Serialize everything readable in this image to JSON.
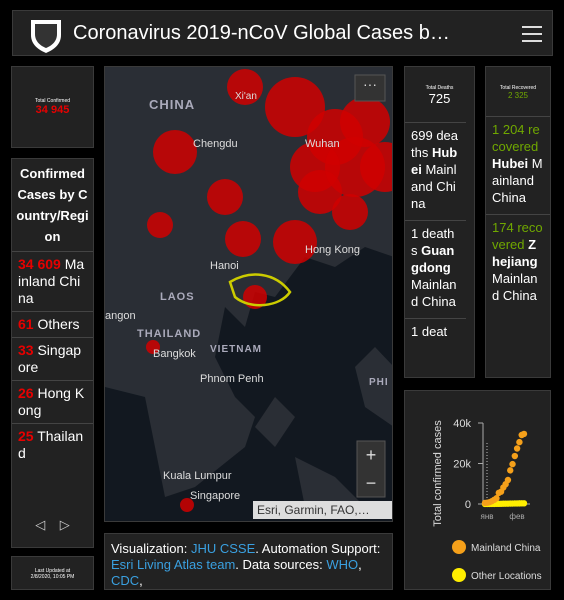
{
  "header": {
    "title": "Coronavirus 2019-nCoV Global Cases b…"
  },
  "total_confirmed": {
    "label": "Total Confirmed",
    "value": "34 945"
  },
  "confirmed_list": {
    "title": "Confirmed Cases by Country/Region",
    "items": [
      {
        "count": "34 609",
        "place": "Mainland China"
      },
      {
        "count": "61",
        "place": "Others"
      },
      {
        "count": "33",
        "place": "Singapore"
      },
      {
        "count": "26",
        "place": "Hong Kong"
      },
      {
        "count": "25",
        "place": "Thailand"
      }
    ]
  },
  "last_updated": {
    "label": "Last Updated at",
    "value": "2/8/2020, 10:05 PM"
  },
  "map": {
    "labels": [
      "CHINA",
      "Xi'an",
      "Chengdu",
      "Wuhan",
      "Hong Kong",
      "Hanoi",
      "LAOS",
      "angon",
      "THAILAND",
      "Bangkok",
      "VIETNAM",
      "Phnom Penh",
      "Kuala Lumpur",
      "Singapore",
      "PHI"
    ],
    "attribution": "Esri, Garmin, FAO,…"
  },
  "info": {
    "parts": [
      "Visualization: ",
      "JHU CSSE",
      ". Automation Support: ",
      "Esri Living Atlas team",
      ". Data sources: ",
      "WHO",
      ", ",
      "CDC",
      ","
    ]
  },
  "deaths": {
    "label": "Total Deaths",
    "value": "725",
    "items": [
      {
        "count": "699",
        "unit": "deaths",
        "place": "Hubei",
        "region": "Mainland China"
      },
      {
        "count": "1",
        "unit": "deaths",
        "place": "Guangdong",
        "region": "Mainland China"
      },
      {
        "count": "1",
        "unit": "deat",
        "place": "",
        "region": ""
      }
    ]
  },
  "recovered": {
    "label": "Total Recovered",
    "value": "2 325",
    "items": [
      {
        "count": "1 204",
        "unit": "recovered",
        "place": "Hubei",
        "region": "Mainland China"
      },
      {
        "count": "174",
        "unit": "recovered",
        "place": "Zhejiang",
        "region": "Mainland China"
      }
    ]
  },
  "chart_data": {
    "type": "scatter",
    "y_label": "Total confirmed cases",
    "ylim": [
      0,
      40000
    ],
    "yticks": [
      0,
      {
        "value": 20000,
        "label": "20k"
      },
      {
        "value": 40000,
        "label": "40k"
      }
    ],
    "xtick_labels": [
      "янв",
      "фев"
    ],
    "series": [
      {
        "name": "Mainland China",
        "color": "#f5a01a",
        "values": [
          548,
          639,
          916,
          1399,
          2062,
          2863,
          5494,
          6070,
          8124,
          9783,
          11871,
          16607,
          19693,
          23680,
          27409,
          30553,
          34075,
          34609
        ]
      },
      {
        "name": "Other Locations",
        "color": "#ffee00",
        "values": [
          7,
          11,
          25,
          40,
          62,
          79,
          87,
          107,
          133,
          162,
          178,
          213,
          234,
          260,
          283,
          309,
          318,
          336
        ]
      }
    ]
  }
}
